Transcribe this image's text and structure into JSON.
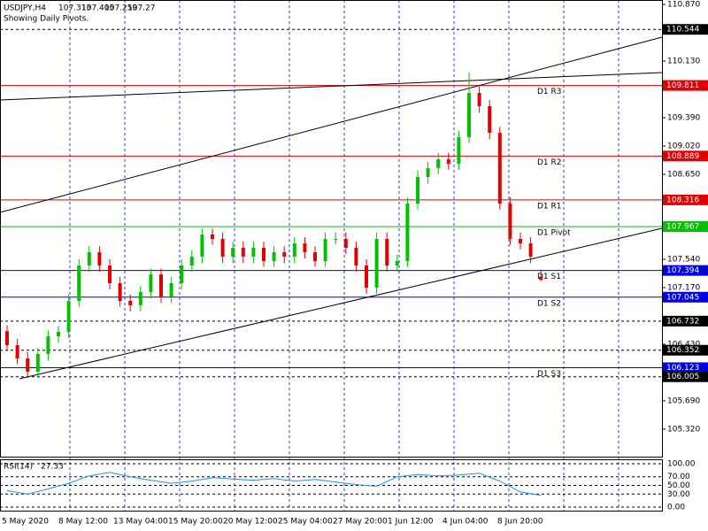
{
  "chart_data": {
    "type": "candlestick",
    "title": "USDJPY,H4",
    "subtitle": "Showing Daily Pivots.",
    "up_color": "#00c000",
    "down_color": "#e00000",
    "ylim": [
      104.961,
      110.928
    ],
    "yticks": [
      {
        "value": 110.87,
        "label": "110.870"
      },
      {
        "value": 110.13,
        "label": "110.130"
      },
      {
        "value": 109.39,
        "label": "109.390"
      },
      {
        "value": 109.02,
        "label": "109.020"
      },
      {
        "value": 108.65,
        "label": "108.650"
      },
      {
        "value": 107.54,
        "label": "107.540"
      },
      {
        "value": 107.17,
        "label": "107.170"
      },
      {
        "value": 106.43,
        "label": "106.430"
      },
      {
        "value": 105.69,
        "label": "105.690"
      },
      {
        "value": 105.32,
        "label": "105.320"
      }
    ],
    "xticks": [
      "5 May 2020",
      "8 May 12:00",
      "13 May 04:00",
      "15 May 20:00",
      "20 May 12:00",
      "25 May 04:00",
      "27 May 20:00",
      "1 Jun 12:00",
      "4 Jun 04:00",
      "8 Jun 20:00"
    ],
    "open": [
      106.6,
      106.418,
      106.245,
      106.071,
      106.303,
      106.534,
      106.592,
      106.996,
      107.459,
      107.632,
      107.459,
      107.228,
      106.996,
      106.939,
      107.112,
      107.343,
      107.054,
      107.228,
      107.459,
      107.575,
      107.864,
      107.806,
      107.575,
      107.69,
      107.575,
      107.69,
      107.517,
      107.632,
      107.575,
      107.748,
      107.632,
      107.517,
      107.806,
      107.806,
      107.69,
      107.459,
      107.17,
      107.806,
      107.459,
      107.517,
      108.268,
      108.615,
      108.731,
      108.846,
      108.789,
      109.136,
      109.714,
      109.54,
      109.193,
      108.268,
      107.806,
      107.748,
      107.313
    ],
    "high": [
      106.68,
      106.5,
      106.33,
      106.38,
      106.61,
      106.67,
      107.08,
      107.54,
      107.71,
      107.71,
      107.54,
      107.31,
      107.08,
      107.19,
      107.42,
      107.42,
      107.31,
      107.54,
      107.66,
      107.94,
      107.94,
      107.89,
      107.77,
      107.77,
      107.77,
      107.77,
      107.71,
      107.71,
      107.83,
      107.83,
      107.71,
      107.89,
      107.89,
      107.89,
      107.77,
      107.54,
      107.89,
      107.89,
      107.6,
      108.35,
      108.7,
      108.81,
      108.93,
      108.93,
      109.22,
      109.98,
      109.8,
      109.62,
      109.27,
      108.35,
      107.89,
      107.83,
      107.405
    ],
    "low": [
      106.34,
      106.17,
      105.99,
      105.99,
      106.22,
      106.45,
      106.51,
      106.92,
      107.38,
      107.38,
      107.15,
      106.92,
      106.86,
      106.86,
      107.03,
      106.97,
      106.97,
      107.15,
      107.38,
      107.49,
      107.73,
      107.49,
      107.49,
      107.49,
      107.49,
      107.44,
      107.44,
      107.49,
      107.49,
      107.55,
      107.44,
      107.44,
      107.73,
      107.61,
      107.38,
      107.09,
      107.09,
      107.38,
      107.38,
      107.44,
      108.19,
      108.53,
      108.65,
      108.71,
      108.71,
      109.06,
      109.46,
      109.11,
      108.19,
      107.73,
      107.67,
      107.49,
      107.259
    ],
    "close": [
      106.418,
      106.245,
      106.071,
      106.303,
      106.534,
      106.592,
      106.996,
      107.459,
      107.632,
      107.459,
      107.228,
      106.996,
      106.939,
      107.112,
      107.343,
      107.054,
      107.228,
      107.459,
      107.575,
      107.864,
      107.806,
      107.575,
      107.69,
      107.575,
      107.69,
      107.517,
      107.632,
      107.575,
      107.748,
      107.632,
      107.517,
      107.806,
      107.806,
      107.69,
      107.459,
      107.17,
      107.806,
      107.459,
      107.517,
      108.268,
      108.615,
      108.731,
      108.846,
      108.789,
      109.136,
      109.714,
      109.54,
      109.193,
      108.268,
      107.806,
      107.748,
      107.575,
      107.27
    ],
    "levels": [
      {
        "value": 110.544,
        "color": "#000000",
        "style": "dash"
      },
      {
        "value": 109.811,
        "name": "D1 R3",
        "color": "#e00000",
        "style": "solid"
      },
      {
        "value": 108.889,
        "name": "D1 R2",
        "color": "#e00000",
        "style": "solid"
      },
      {
        "value": 108.316,
        "name": "D1 R1",
        "color": "#e00000",
        "style": "solid"
      },
      {
        "value": 107.967,
        "name": "D1 Pivot",
        "color": "#00c000",
        "style": "solid"
      },
      {
        "value": 107.394,
        "name": "D1 S1",
        "color": "#0000e0",
        "style": "solid"
      },
      {
        "value": 107.045,
        "name": "D1 S2",
        "color": "#0000e0",
        "style": "solid"
      },
      {
        "value": 106.732,
        "color": "#000000",
        "style": "dash"
      },
      {
        "value": 106.352,
        "color": "#000000",
        "style": "dash"
      },
      {
        "value": 106.123,
        "name": "D1 S3",
        "color": "#0000e0",
        "style": "solid"
      },
      {
        "value": 106.005,
        "color": "#000000",
        "style": "dash"
      }
    ],
    "rsi": {
      "name": "RSI(14)",
      "color": "#1e90ff",
      "ylim": [
        -10.2,
        108.2
      ],
      "yticks": [
        {
          "value": 100,
          "label": "100.00"
        },
        {
          "value": 70,
          "label": "70.00"
        },
        {
          "value": 50,
          "label": "50.00"
        },
        {
          "value": 30,
          "label": "30.00"
        },
        {
          "value": 0,
          "label": "0.00"
        }
      ],
      "values": [
        38,
        30,
        42,
        55,
        72,
        80,
        70,
        62,
        55,
        60,
        68,
        65,
        62,
        66,
        60,
        64,
        58,
        52,
        48,
        70,
        75,
        72,
        74,
        78,
        60,
        35,
        27.33
      ]
    }
  }
}
